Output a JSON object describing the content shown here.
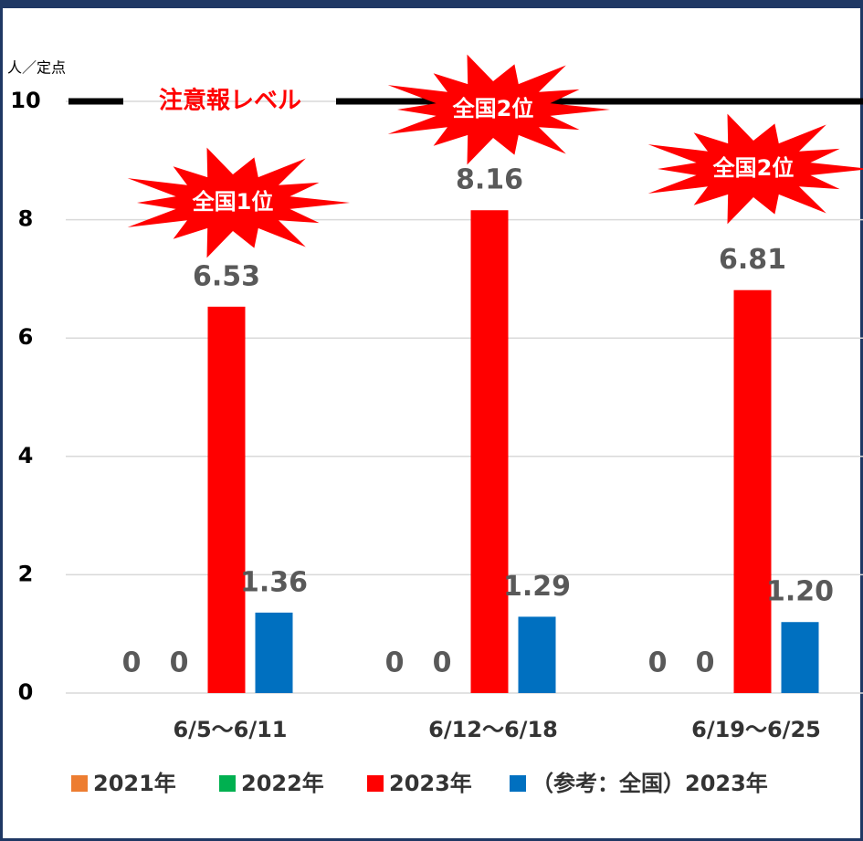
{
  "chart_data": {
    "type": "bar",
    "unit_label": "人／定点",
    "categories": [
      "6/5〜6/11",
      "6/12〜6/18",
      "6/19〜6/25"
    ],
    "series": [
      {
        "name": "2021年",
        "color": "#ED7D31",
        "values": [
          0,
          0,
          0
        ]
      },
      {
        "name": "2022年",
        "color": "#00B050",
        "values": [
          0,
          0,
          0
        ]
      },
      {
        "name": "2023年",
        "color": "#FF0000",
        "values": [
          6.53,
          8.16,
          6.81
        ]
      },
      {
        "name": "（参考：全国）2023年",
        "color": "#0070C0",
        "values": [
          1.36,
          1.29,
          1.2
        ],
        "value_labels": [
          "1.36",
          "1.29",
          "1.20"
        ]
      }
    ],
    "ylim": [
      0,
      10
    ],
    "yticks": [
      0,
      2,
      4,
      6,
      8,
      10
    ],
    "grid": true,
    "threshold": {
      "value": 10,
      "label": "注意報レベル",
      "color": "#000000",
      "label_color": "#FF0000"
    },
    "annotations": [
      "全国1位",
      "全国2位",
      "全国2位"
    ]
  }
}
